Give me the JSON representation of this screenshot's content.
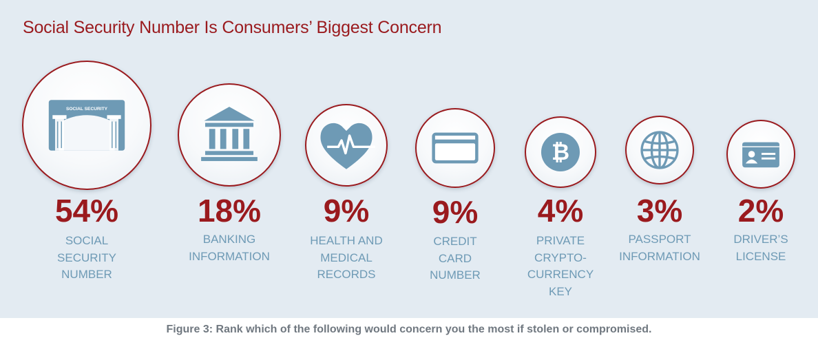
{
  "caption": "Figure 3: Rank which of the following would concern you the most if stolen or compromised.",
  "colors": {
    "accent": "#9a1a1e",
    "icon": "#6e9ab5",
    "panel": "#e3ebf2"
  },
  "chart_data": {
    "type": "bar",
    "title": "Social Security Number Is Consumers’ Biggest Concern",
    "categories": [
      "SOCIAL\nSECURITY\nNUMBER",
      "BANKING\nINFORMATION",
      "HEALTH AND\nMEDICAL\nRECORDS",
      "CREDIT\nCARD\nNUMBER",
      "PRIVATE\nCRYPTO-\nCURRENCY\nKEY",
      "PASSPORT\nINFORMATION",
      "DRIVER’S\nLICENSE"
    ],
    "values": [
      54,
      18,
      9,
      9,
      4,
      3,
      2
    ],
    "value_labels": [
      "54%",
      "18%",
      "9%",
      "9%",
      "4%",
      "3%",
      "2%"
    ],
    "icons": [
      "social-security-card-icon",
      "bank-icon",
      "heart-pulse-icon",
      "credit-card-icon",
      "bitcoin-icon",
      "globe-icon",
      "id-card-icon"
    ],
    "icon_text": {
      "social_security_card": "SOCIAL SECURITY"
    }
  }
}
